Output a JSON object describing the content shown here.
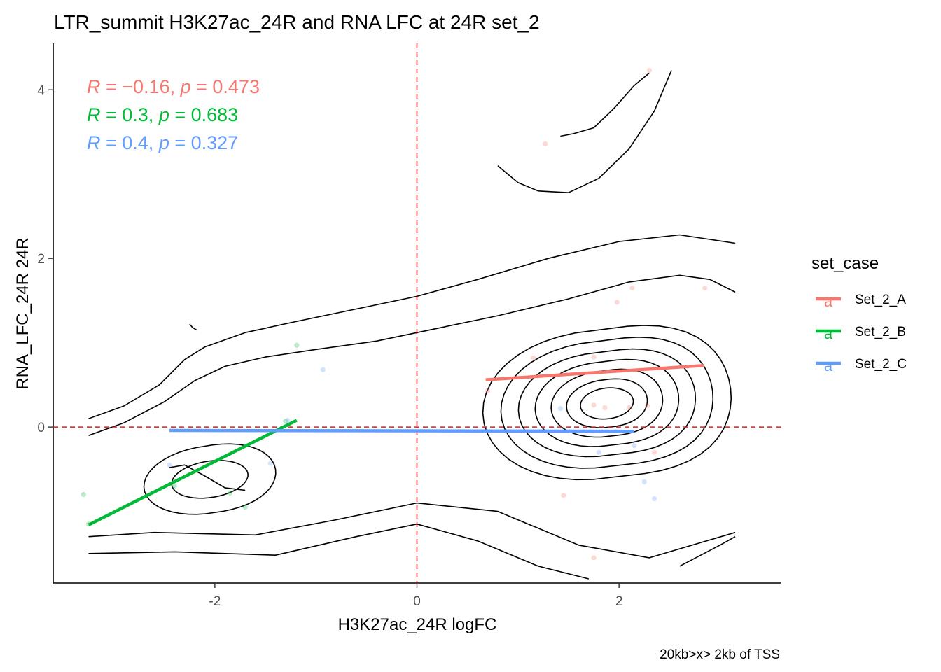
{
  "chart_data": {
    "type": "scatter",
    "title": "LTR_summit H3K27ac_24R and RNA LFC at 24R set_2",
    "xlabel": "H3K27ac_24R logFC",
    "ylabel": "RNA_LFC_24R 24R",
    "caption": "20kb>x> 2kb of TSS",
    "xlim": [
      -3.6,
      3.6
    ],
    "ylim": [
      -1.85,
      4.55
    ],
    "x_ticks": [
      -2,
      0,
      2
    ],
    "x_tick_labels": [
      "-2",
      "0",
      "2"
    ],
    "y_ticks": [
      0,
      2,
      4
    ],
    "y_tick_labels": [
      "0",
      "2",
      "4"
    ],
    "reference_lines": {
      "x": 0,
      "y": 0,
      "color": "#E41A1C",
      "style": "dashed"
    },
    "legend": {
      "title": "set_case",
      "position": "right",
      "key_glyph": "a",
      "entries": [
        {
          "name": "Set_2_A",
          "color": "#F8766D"
        },
        {
          "name": "Set_2_B",
          "color": "#00BA38"
        },
        {
          "name": "Set_2_C",
          "color": "#619CFF"
        }
      ]
    },
    "annotations": [
      {
        "series": "Set_2_A",
        "r_label": "R",
        "r_value": "= −0.16,",
        "p_label": "p",
        "p_value": "= 0.473",
        "color": "#F8766D"
      },
      {
        "series": "Set_2_B",
        "r_label": "R",
        "r_value": "= 0.3,",
        "p_label": "p",
        "p_value": "= 0.683",
        "color": "#00BA38"
      },
      {
        "series": "Set_2_C",
        "r_label": "R",
        "r_value": "= 0.4,",
        "p_label": "p",
        "p_value": "= 0.327",
        "color": "#619CFF"
      }
    ],
    "series": [
      {
        "name": "Set_2_A",
        "color": "#F8766D",
        "points": [
          [
            2.3,
            4.23
          ],
          [
            1.27,
            3.36
          ],
          [
            2.85,
            1.65
          ],
          [
            2.13,
            1.65
          ],
          [
            1.98,
            1.48
          ],
          [
            1.75,
            0.83
          ],
          [
            1.15,
            0.82
          ],
          [
            0.7,
            0.43
          ],
          [
            1.75,
            0.26
          ],
          [
            1.86,
            0.23
          ],
          [
            2.1,
            0.23
          ],
          [
            2.28,
            0.25
          ],
          [
            1.45,
            -0.81
          ],
          [
            1.75,
            -1.55
          ],
          [
            2.35,
            -0.3
          ]
        ],
        "fit": [
          [
            0.68,
            0.56
          ],
          [
            2.84,
            0.73
          ]
        ]
      },
      {
        "name": "Set_2_B",
        "color": "#00BA38",
        "points": [
          [
            -1.19,
            0.97
          ],
          [
            -1.85,
            -0.78
          ],
          [
            -1.7,
            -0.95
          ],
          [
            -3.3,
            -0.8
          ],
          [
            -2.4,
            -0.7
          ],
          [
            -1.3,
            0.07
          ],
          [
            -3.25,
            -1.15
          ]
        ],
        "fit": [
          [
            -3.25,
            -1.16
          ],
          [
            -1.19,
            0.08
          ]
        ]
      },
      {
        "name": "Set_2_C",
        "color": "#619CFF",
        "points": [
          [
            -0.93,
            0.68
          ],
          [
            -2.45,
            -0.45
          ],
          [
            -1.45,
            -0.43
          ],
          [
            -1.28,
            0.08
          ],
          [
            1.42,
            0.22
          ],
          [
            2.15,
            -0.22
          ],
          [
            1.8,
            -0.3
          ],
          [
            2.25,
            -0.65
          ],
          [
            2.35,
            -0.85
          ]
        ],
        "fit": [
          [
            -2.45,
            -0.04
          ],
          [
            2.15,
            -0.05
          ]
        ]
      }
    ],
    "density_contours": [
      [
        [
          -3.25,
          0.1
        ],
        [
          -2.9,
          0.25
        ],
        [
          -2.55,
          0.5
        ],
        [
          -2.3,
          0.8
        ],
        [
          -2.1,
          0.95
        ],
        [
          -1.7,
          1.12
        ],
        [
          -1.2,
          1.25
        ],
        [
          -0.6,
          1.4
        ],
        [
          0,
          1.55
        ],
        [
          0.6,
          1.75
        ],
        [
          1.3,
          2
        ],
        [
          2,
          2.2
        ],
        [
          2.6,
          2.28
        ],
        [
          3.15,
          2.18
        ]
      ],
      [
        [
          -3.25,
          -0.1
        ],
        [
          -2.9,
          0.05
        ],
        [
          -2.5,
          0.3
        ],
        [
          -2.2,
          0.55
        ],
        [
          -1.9,
          0.72
        ],
        [
          -1.5,
          0.83
        ],
        [
          -1,
          0.92
        ],
        [
          -0.4,
          1.02
        ],
        [
          0.2,
          1.17
        ],
        [
          0.8,
          1.32
        ],
        [
          1.5,
          1.52
        ],
        [
          2.1,
          1.72
        ],
        [
          2.6,
          1.8
        ],
        [
          2.9,
          1.75
        ],
        [
          3.15,
          1.6
        ]
      ],
      [
        [
          -2.25,
          1.22
        ],
        [
          -2.22,
          1.18
        ],
        [
          -2.18,
          1.15
        ]
      ],
      [
        [
          0.8,
          3.1
        ],
        [
          1.0,
          2.9
        ],
        [
          1.2,
          2.8
        ],
        [
          1.5,
          2.78
        ],
        [
          1.8,
          2.95
        ],
        [
          2.1,
          3.3
        ],
        [
          2.35,
          3.75
        ],
        [
          2.52,
          4.23
        ]
      ],
      [
        [
          -2.45,
          -0.48
        ],
        [
          -2.3,
          -0.45
        ],
        [
          -2.1,
          -0.58
        ],
        [
          -1.9,
          -0.72
        ],
        [
          -1.7,
          -0.75
        ]
      ],
      [
        [
          1.42,
          3.45
        ],
        [
          1.55,
          3.48
        ],
        [
          1.75,
          3.55
        ],
        [
          1.95,
          3.78
        ],
        [
          2.15,
          4.05
        ],
        [
          2.3,
          4.2
        ]
      ]
    ]
  }
}
